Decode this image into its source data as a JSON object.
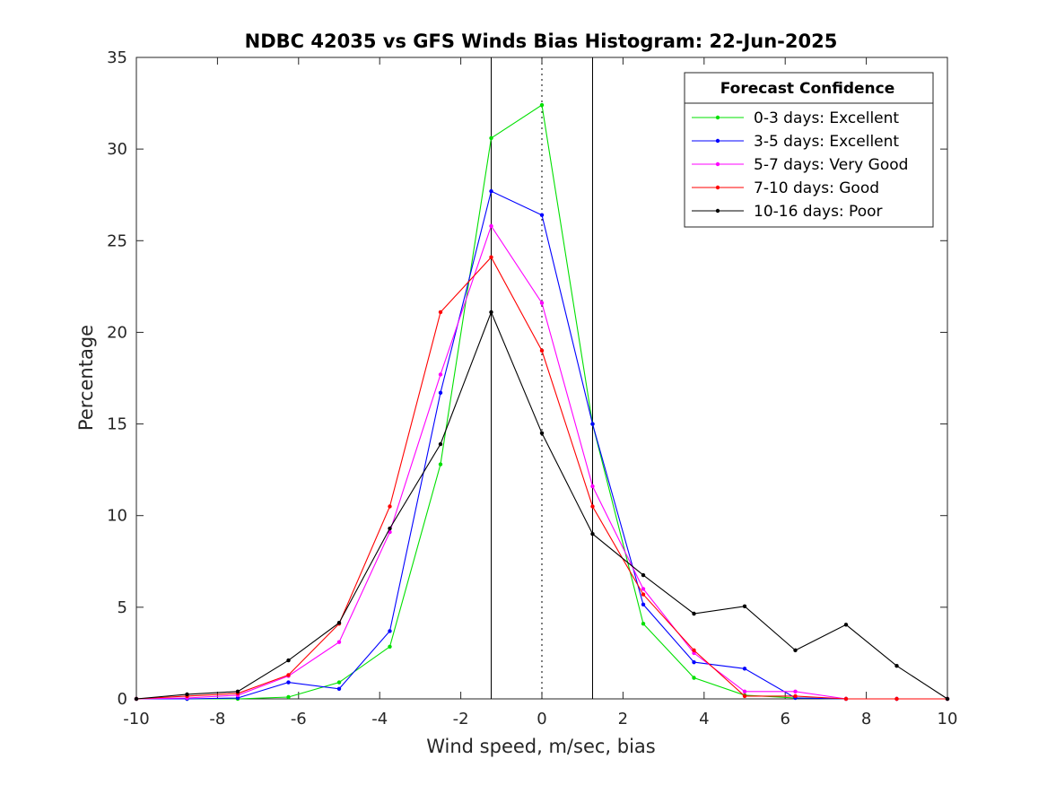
{
  "chart_data": {
    "type": "line",
    "title": "NDBC 42035 vs GFS Winds Bias Histogram: 22-Jun-2025",
    "xlabel": "Wind speed, m/sec, bias",
    "ylabel": "Percentage",
    "xlim": [
      -10,
      10
    ],
    "ylim": [
      0,
      35
    ],
    "xticks": [
      -10,
      -8,
      -6,
      -4,
      -2,
      0,
      2,
      4,
      6,
      8,
      10
    ],
    "yticks": [
      0,
      5,
      10,
      15,
      20,
      25,
      30,
      35
    ],
    "grid": false,
    "legend": {
      "title": "Forecast Confidence",
      "placement": "top-right"
    },
    "reference_lines": [
      {
        "x": -1.25,
        "style": "solid",
        "color": "#000000"
      },
      {
        "x": 0,
        "style": "dotted",
        "color": "#000000"
      },
      {
        "x": 1.25,
        "style": "solid",
        "color": "#000000"
      }
    ],
    "x": [
      -10,
      -8.75,
      -7.5,
      -6.25,
      -5,
      -3.75,
      -2.5,
      -1.25,
      0,
      1.25,
      2.5,
      3.75,
      5,
      6.25,
      7.5,
      8.75,
      10
    ],
    "series": [
      {
        "name": "0-3 days: Excellent",
        "color": "#00e000",
        "values": [
          0,
          0,
          0,
          0.1,
          0.9,
          2.85,
          12.8,
          30.6,
          32.4,
          15.0,
          4.1,
          1.15,
          0.2,
          0.05,
          0,
          0,
          0
        ]
      },
      {
        "name": "3-5 days: Excellent",
        "color": "#0000ff",
        "values": [
          0,
          0,
          0.05,
          0.9,
          0.55,
          3.7,
          16.7,
          27.7,
          26.4,
          15.0,
          5.15,
          2.0,
          1.65,
          0.05,
          0,
          0,
          0
        ]
      },
      {
        "name": "5-7 days: Very Good",
        "color": "#ff00ff",
        "values": [
          0,
          0.05,
          0.2,
          1.25,
          3.1,
          9.1,
          17.7,
          25.8,
          21.6,
          11.6,
          6.0,
          2.5,
          0.4,
          0.4,
          0,
          0,
          0
        ]
      },
      {
        "name": "7-10 days: Good",
        "color": "#ff0000",
        "values": [
          0,
          0.15,
          0.3,
          1.3,
          4.1,
          10.5,
          21.1,
          24.1,
          19.0,
          10.5,
          5.7,
          2.65,
          0.15,
          0.15,
          0,
          0,
          0
        ]
      },
      {
        "name": "10-16 days: Poor",
        "color": "#000000",
        "values": [
          0,
          0.25,
          0.4,
          2.1,
          4.15,
          9.3,
          13.9,
          21.1,
          14.5,
          9.0,
          6.75,
          4.65,
          5.05,
          2.65,
          4.05,
          1.8,
          0
        ]
      }
    ]
  }
}
